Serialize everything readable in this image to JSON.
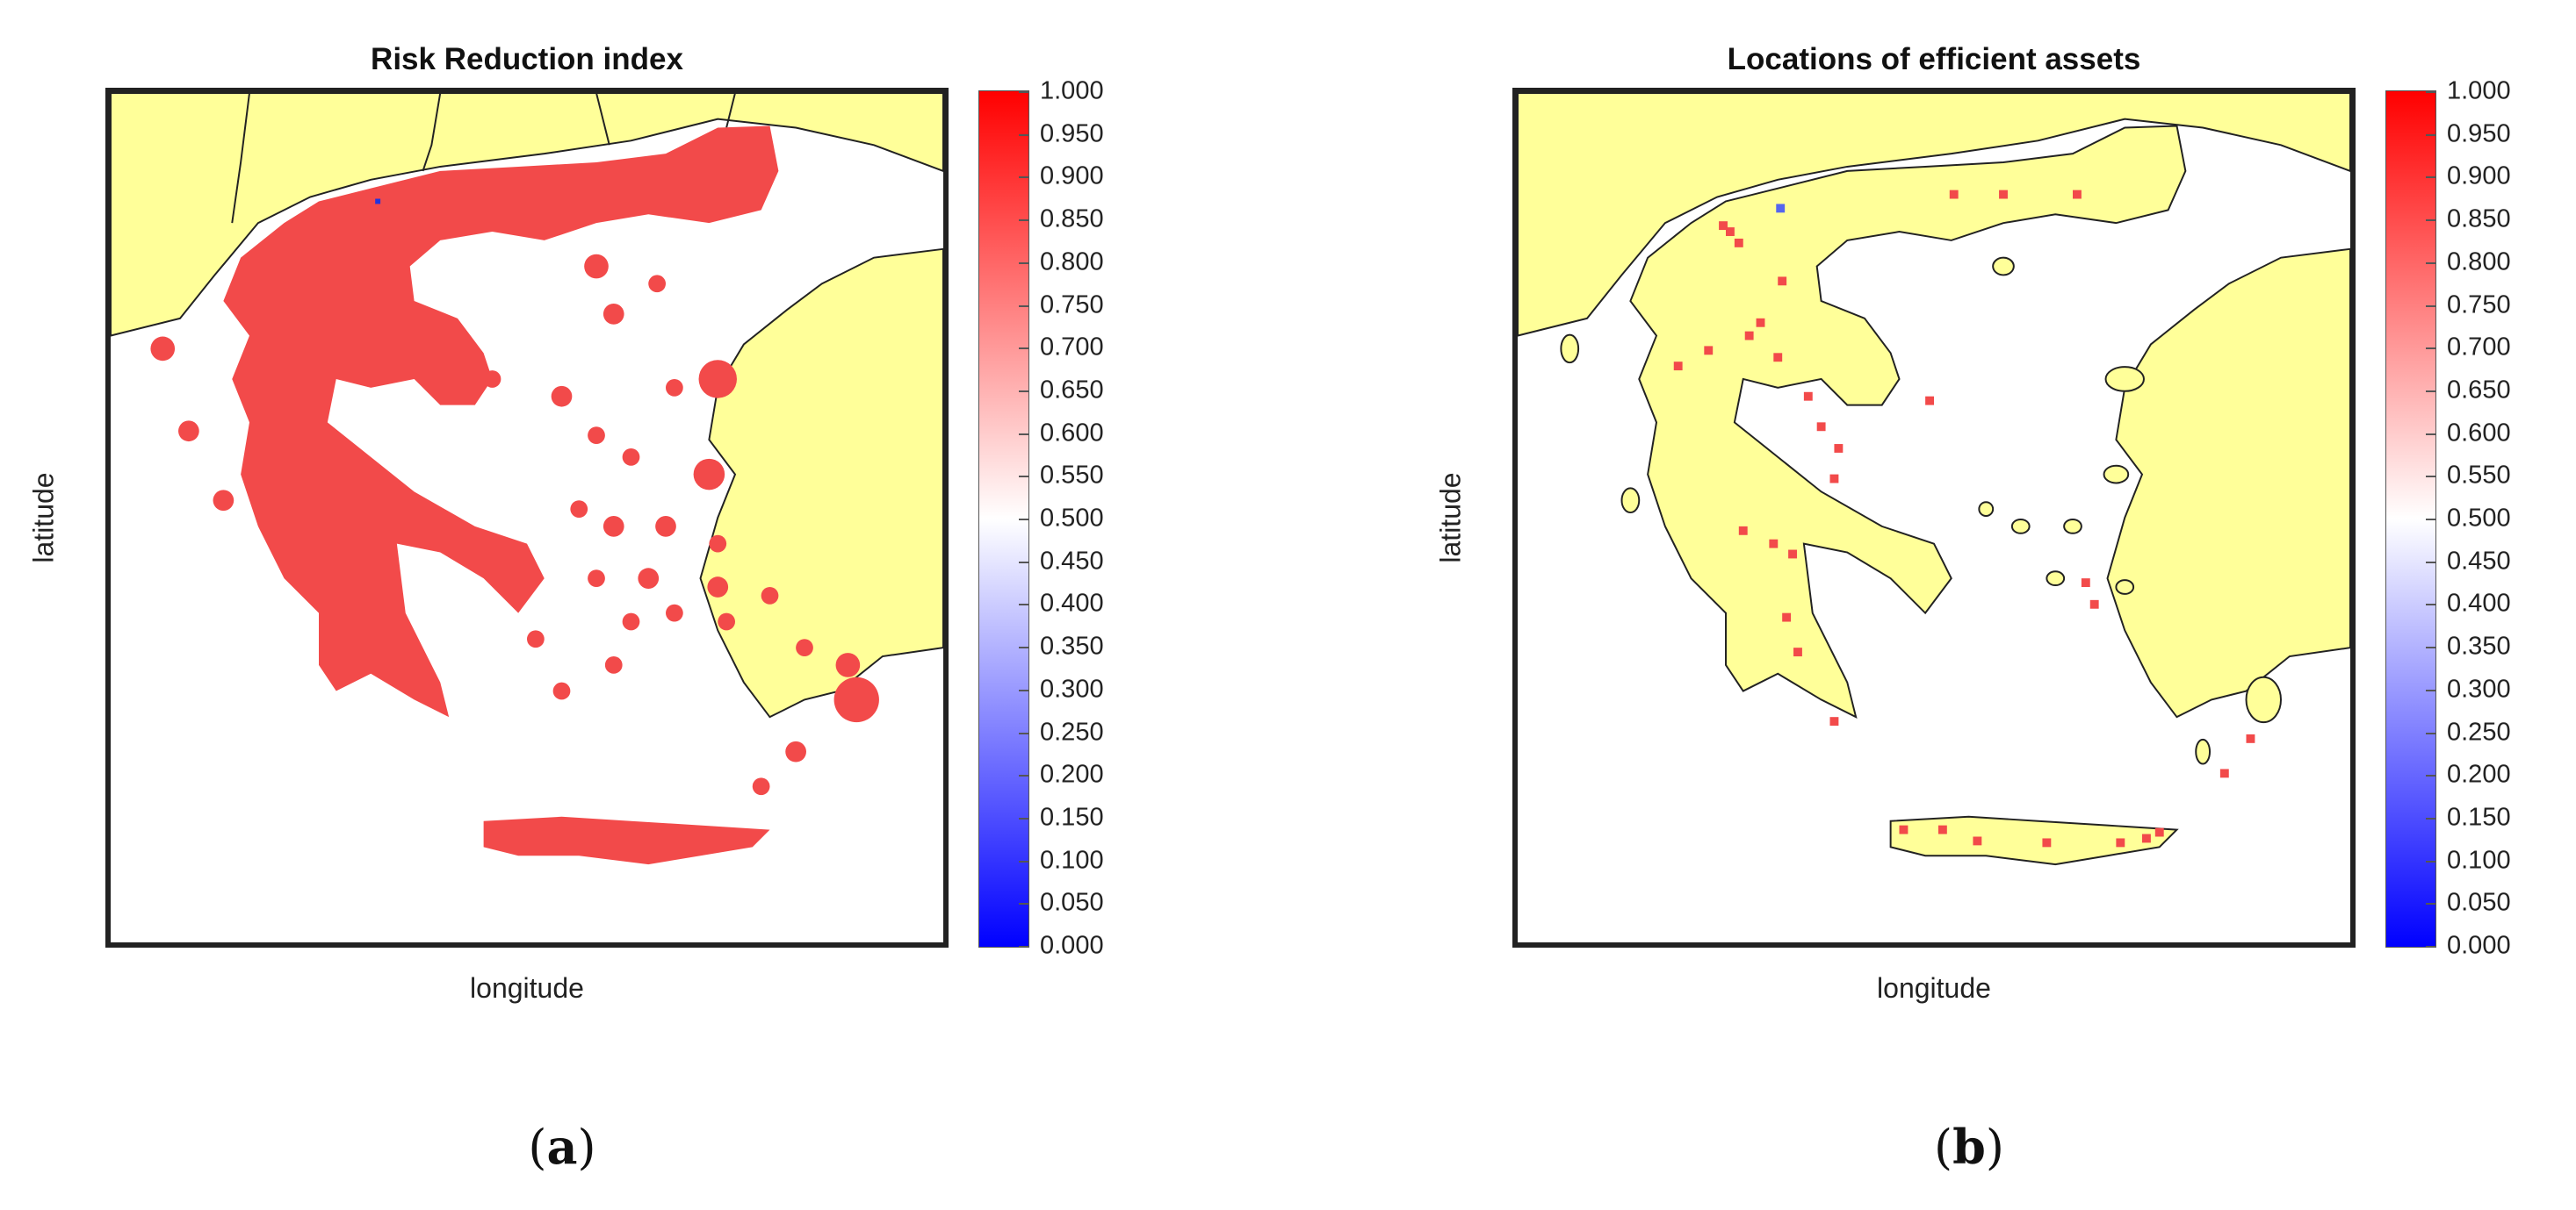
{
  "panels": [
    {
      "label_open": "(",
      "label_letter": "a",
      "label_close": ")",
      "title": "Risk Reduction index",
      "xlabel": "longitude",
      "ylabel": "latitude"
    },
    {
      "label_open": "(",
      "label_letter": "b",
      "label_close": ")",
      "title": "Locations of efficient assets",
      "xlabel": "longitude",
      "ylabel": "latitude"
    }
  ],
  "colorbar": {
    "min": 0,
    "max": 1,
    "colors": {
      "low": "#0000ff",
      "mid": "#ffffff",
      "high": "#ff0000"
    },
    "ticks": [
      "1.000",
      "0.950",
      "0.900",
      "0.850",
      "0.800",
      "0.750",
      "0.700",
      "0.650",
      "0.600",
      "0.550",
      "0.500",
      "0.450",
      "0.400",
      "0.350",
      "0.300",
      "0.250",
      "0.200",
      "0.150",
      "0.100",
      "0.050",
      "0.000"
    ]
  },
  "colors": {
    "land": "#ffff99",
    "sea": "#ffffff",
    "frame": "#222222",
    "risk": "#f24a4a"
  },
  "efficient_assets_count_shown": 34
}
